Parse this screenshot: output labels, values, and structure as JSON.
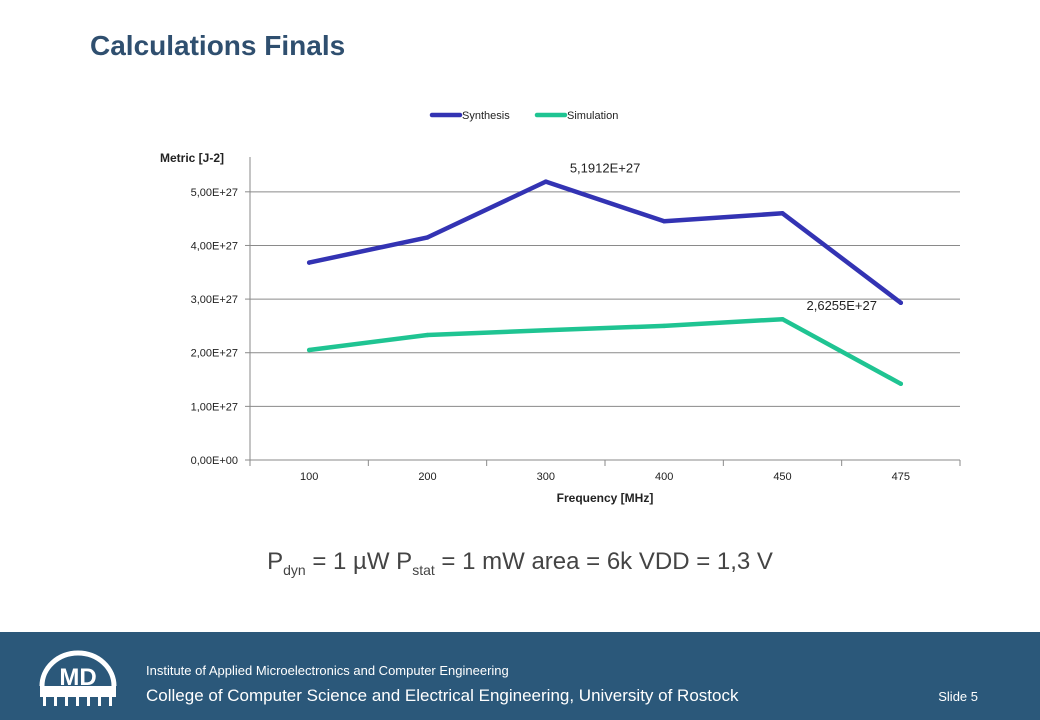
{
  "slide_title": "Calculations Finals",
  "formula": {
    "p": "P",
    "dyn": "dyn",
    "dyn_rest": " = 1 µW ",
    "stat": "stat",
    "stat_rest": " = 1 mW area = 6k VDD = 1,3 V"
  },
  "footer": {
    "logo_text": "MD",
    "institute": "Institute of Applied Microelectronics and Computer Engineering",
    "college": "College of Computer Science and Electrical Engineering, University of Rostock",
    "slide_number": "Slide 5"
  },
  "colors": {
    "title": "#2f4f6f",
    "footer_bg": "#2b587a",
    "synthesis": "#3333b3",
    "simulation": "#1fc492"
  },
  "chart_data": {
    "type": "line",
    "categories": [
      "100",
      "200",
      "300",
      "400",
      "450",
      "475"
    ],
    "series": [
      {
        "name": "Synthesis",
        "color": "#3333b3",
        "values": [
          3.68e+27,
          4.15e+27,
          5.1912e+27,
          4.45e+27,
          4.6e+27,
          2.93e+27
        ]
      },
      {
        "name": "Simulation",
        "color": "#1fc492",
        "values": [
          2.05e+27,
          2.33e+27,
          2.42e+27,
          2.5e+27,
          2.6255e+27,
          1.42e+27
        ]
      }
    ],
    "ylim": [
      0,
      5.5e+27
    ],
    "yticks": [
      0,
      1e+27,
      2e+27,
      3e+27,
      4e+27,
      5e+27
    ],
    "ytick_labels": [
      "0,00E+00",
      "1,00E+27",
      "2,00E+27",
      "3,00E+27",
      "4,00E+27",
      "5,00E+27"
    ],
    "ylabel": "Metric [J-2]",
    "xlabel": "Frequency [MHz]",
    "annotations": [
      {
        "series": 0,
        "index": 2,
        "text": "5,1912E+27"
      },
      {
        "series": 1,
        "index": 4,
        "text": "2,6255E+27"
      }
    ],
    "grid": true,
    "legend": "top"
  }
}
